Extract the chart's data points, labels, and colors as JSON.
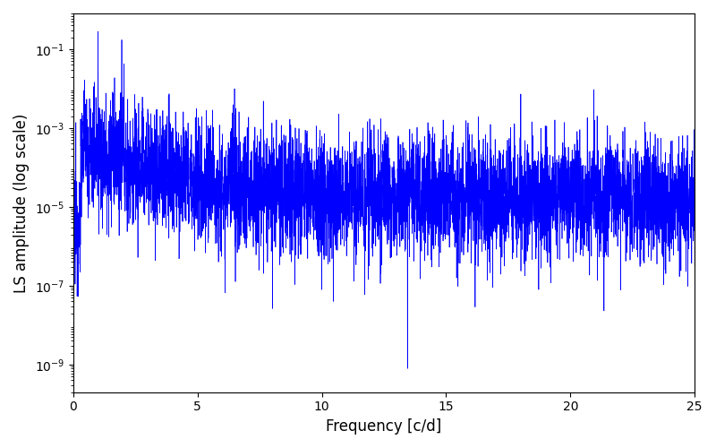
{
  "title": "",
  "xlabel": "Frequency [c/d]",
  "ylabel": "LS amplitude (log scale)",
  "xlim": [
    0,
    25
  ],
  "ylim_log": [
    2e-10,
    0.8
  ],
  "line_color": "#0000ff",
  "line_width": 0.5,
  "figsize": [
    8.0,
    5.0
  ],
  "dpi": 100,
  "yscale": "log",
  "freq_max": 25.0,
  "n_points": 5000,
  "seed": 12345,
  "background_color": "#ffffff",
  "yticks": [
    1e-09,
    1e-07,
    1e-05,
    0.001,
    0.1
  ],
  "xticks": [
    0,
    5,
    10,
    15,
    20,
    25
  ]
}
